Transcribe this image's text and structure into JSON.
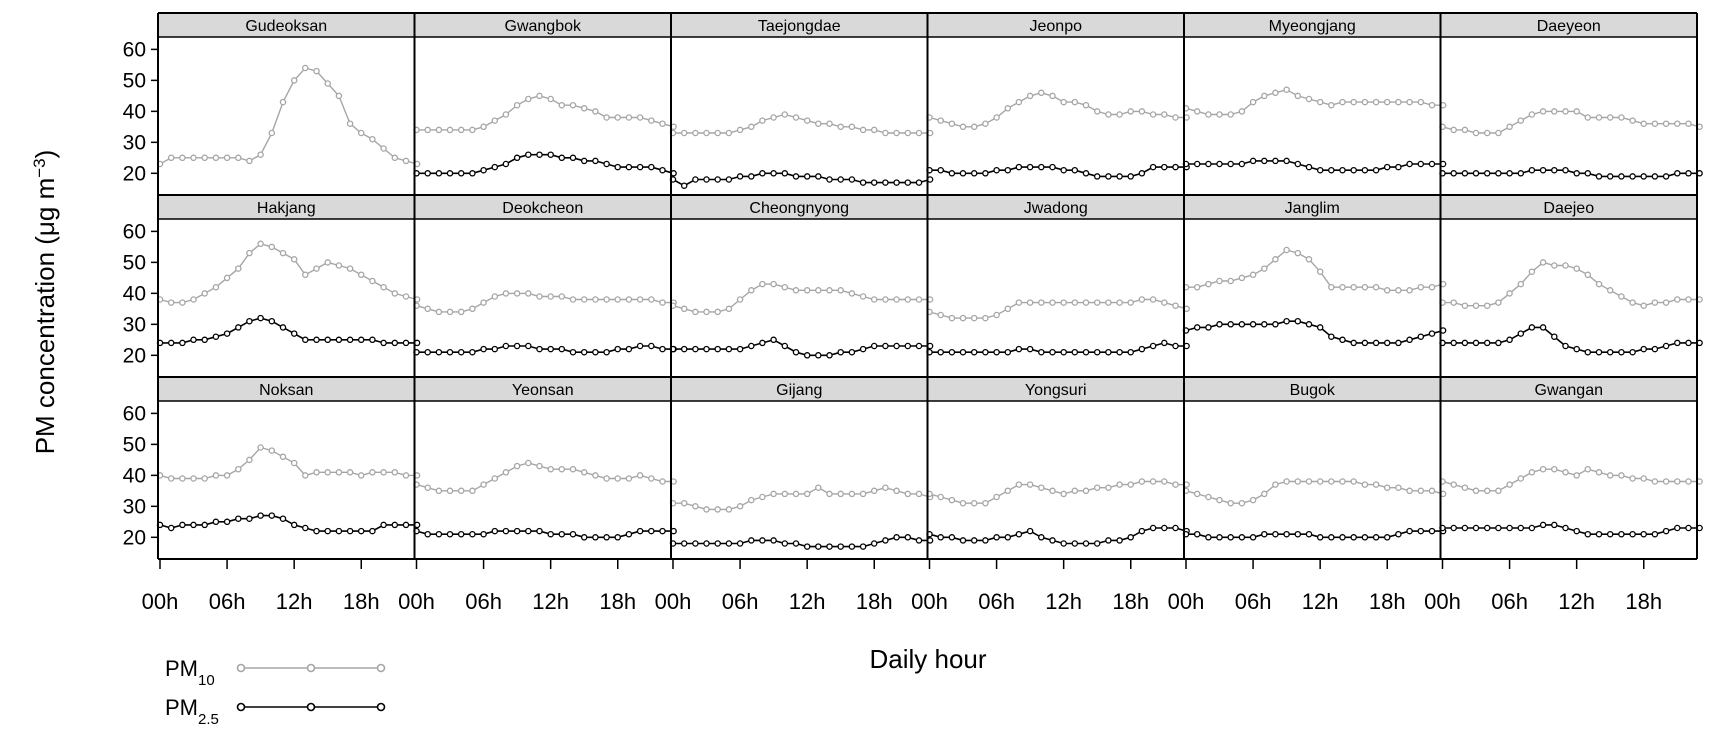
{
  "chart_data": {
    "type": "line",
    "ylabel_main": "PM concentration (μg m",
    "ylabel_sup": "−3",
    "ylabel_close": ")",
    "xlabel": "Daily hour",
    "ylim": [
      13,
      64
    ],
    "yticks": [
      20,
      30,
      40,
      50,
      60
    ],
    "xticks": [
      0,
      6,
      12,
      18
    ],
    "xtick_labels": [
      "00h",
      "06h",
      "12h",
      "18h"
    ],
    "grid": false,
    "legend": {
      "placement": "bottom-left",
      "entries": [
        {
          "main": "PM",
          "sub": "10",
          "color": "#a6a6a6"
        },
        {
          "main": "PM",
          "sub": "2.5",
          "color": "#000000"
        }
      ]
    },
    "series_colors": {
      "pm10": "#a6a6a6",
      "pm25": "#000000"
    },
    "panels": [
      {
        "title": "Gudeoksan",
        "pm10": [
          23,
          25,
          25,
          25,
          25,
          25,
          25,
          25,
          24,
          26,
          33,
          43,
          50,
          54,
          53,
          49,
          45,
          36,
          33,
          31,
          28,
          25,
          24,
          23
        ]
      },
      {
        "title": "Gwangbok",
        "pm10": [
          34,
          34,
          34,
          34,
          34,
          34,
          35,
          37,
          39,
          42,
          44,
          45,
          44,
          42,
          42,
          41,
          40,
          38,
          38,
          38,
          38,
          37,
          36,
          35
        ],
        "pm25": [
          20,
          20,
          20,
          20,
          20,
          20,
          21,
          22,
          23,
          25,
          26,
          26,
          26,
          25,
          25,
          24,
          24,
          23,
          22,
          22,
          22,
          22,
          21,
          20
        ]
      },
      {
        "title": "Taejongdae",
        "pm10": [
          33,
          33,
          33,
          33,
          33,
          33,
          34,
          35,
          37,
          38,
          39,
          38,
          37,
          36,
          36,
          35,
          35,
          34,
          34,
          33,
          33,
          33,
          33,
          33
        ],
        "pm25": [
          18,
          16,
          18,
          18,
          18,
          18,
          19,
          19,
          20,
          20,
          20,
          19,
          19,
          19,
          18,
          18,
          18,
          17,
          17,
          17,
          17,
          17,
          17,
          18
        ]
      },
      {
        "title": "Jeonpo",
        "pm10": [
          38,
          37,
          36,
          35,
          35,
          36,
          38,
          41,
          43,
          45,
          46,
          45,
          43,
          43,
          42,
          40,
          39,
          39,
          40,
          40,
          39,
          39,
          38,
          38
        ],
        "pm25": [
          21,
          21,
          20,
          20,
          20,
          20,
          21,
          21,
          22,
          22,
          22,
          22,
          21,
          21,
          20,
          19,
          19,
          19,
          19,
          20,
          22,
          22,
          22,
          22
        ]
      },
      {
        "title": "Myeongjang",
        "pm10": [
          41,
          40,
          39,
          39,
          39,
          40,
          43,
          45,
          46,
          47,
          45,
          44,
          43,
          42,
          43,
          43,
          43,
          43,
          43,
          43,
          43,
          43,
          42,
          42
        ],
        "pm25": [
          23,
          23,
          23,
          23,
          23,
          23,
          24,
          24,
          24,
          24,
          23,
          22,
          21,
          21,
          21,
          21,
          21,
          21,
          22,
          22,
          23,
          23,
          23,
          23
        ]
      },
      {
        "title": "Daeyeon",
        "pm10": [
          35,
          34,
          34,
          33,
          33,
          33,
          35,
          37,
          39,
          40,
          40,
          40,
          40,
          38,
          38,
          38,
          38,
          37,
          36,
          36,
          36,
          36,
          36,
          35
        ],
        "pm25": [
          20,
          20,
          20,
          20,
          20,
          20,
          20,
          20,
          21,
          21,
          21,
          21,
          20,
          20,
          19,
          19,
          19,
          19,
          19,
          19,
          19,
          20,
          20,
          20
        ]
      },
      {
        "title": "Hakjang",
        "pm10": [
          38,
          37,
          37,
          38,
          40,
          42,
          45,
          48,
          53,
          56,
          55,
          53,
          51,
          46,
          48,
          50,
          49,
          48,
          46,
          44,
          42,
          40,
          39,
          38
        ],
        "pm25": [
          24,
          24,
          24,
          25,
          25,
          26,
          27,
          29,
          31,
          32,
          31,
          29,
          27,
          25,
          25,
          25,
          25,
          25,
          25,
          25,
          24,
          24,
          24,
          24
        ]
      },
      {
        "title": "Deokcheon",
        "pm10": [
          36,
          35,
          34,
          34,
          34,
          35,
          37,
          39,
          40,
          40,
          40,
          39,
          39,
          39,
          38,
          38,
          38,
          38,
          38,
          38,
          38,
          38,
          37,
          37
        ],
        "pm25": [
          21,
          21,
          21,
          21,
          21,
          21,
          22,
          22,
          23,
          23,
          23,
          22,
          22,
          22,
          21,
          21,
          21,
          21,
          22,
          22,
          23,
          23,
          22,
          22
        ]
      },
      {
        "title": "Cheongnyong",
        "pm10": [
          36,
          35,
          34,
          34,
          34,
          35,
          38,
          41,
          43,
          43,
          42,
          41,
          41,
          41,
          41,
          41,
          40,
          39,
          38,
          38,
          38,
          38,
          38,
          38
        ],
        "pm25": [
          22,
          22,
          22,
          22,
          22,
          22,
          22,
          23,
          24,
          25,
          23,
          21,
          20,
          20,
          20,
          21,
          21,
          22,
          23,
          23,
          23,
          23,
          23,
          23
        ]
      },
      {
        "title": "Jwadong",
        "pm10": [
          34,
          33,
          32,
          32,
          32,
          32,
          33,
          35,
          37,
          37,
          37,
          37,
          37,
          37,
          37,
          37,
          37,
          37,
          37,
          38,
          38,
          37,
          36,
          35
        ],
        "pm25": [
          21,
          21,
          21,
          21,
          21,
          21,
          21,
          21,
          22,
          22,
          21,
          21,
          21,
          21,
          21,
          21,
          21,
          21,
          21,
          22,
          23,
          24,
          23,
          23
        ]
      },
      {
        "title": "Janglim",
        "pm10": [
          42,
          42,
          43,
          44,
          44,
          45,
          46,
          48,
          51,
          54,
          53,
          51,
          47,
          42,
          42,
          42,
          42,
          42,
          41,
          41,
          41,
          42,
          42,
          43
        ],
        "pm25": [
          28,
          29,
          29,
          30,
          30,
          30,
          30,
          30,
          30,
          31,
          31,
          30,
          29,
          26,
          25,
          24,
          24,
          24,
          24,
          24,
          25,
          26,
          27,
          28
        ]
      },
      {
        "title": "Daejeo",
        "pm10": [
          37,
          37,
          36,
          36,
          36,
          37,
          40,
          43,
          47,
          50,
          49,
          49,
          48,
          46,
          43,
          41,
          39,
          37,
          36,
          37,
          37,
          38,
          38,
          38
        ],
        "pm25": [
          24,
          24,
          24,
          24,
          24,
          24,
          25,
          27,
          29,
          29,
          26,
          23,
          22,
          21,
          21,
          21,
          21,
          21,
          22,
          22,
          23,
          24,
          24,
          24
        ]
      },
      {
        "title": "Noksan",
        "pm10": [
          40,
          39,
          39,
          39,
          39,
          40,
          40,
          42,
          45,
          49,
          48,
          46,
          44,
          40,
          41,
          41,
          41,
          41,
          40,
          41,
          41,
          41,
          40,
          40
        ],
        "pm25": [
          24,
          23,
          24,
          24,
          24,
          25,
          25,
          26,
          26,
          27,
          27,
          26,
          24,
          23,
          22,
          22,
          22,
          22,
          22,
          22,
          24,
          24,
          24,
          24
        ]
      },
      {
        "title": "Yeonsan",
        "pm10": [
          37,
          36,
          35,
          35,
          35,
          35,
          37,
          39,
          41,
          43,
          44,
          43,
          42,
          42,
          42,
          41,
          40,
          39,
          39,
          39,
          40,
          39,
          38,
          38
        ],
        "pm25": [
          22,
          21,
          21,
          21,
          21,
          21,
          21,
          22,
          22,
          22,
          22,
          22,
          21,
          21,
          21,
          20,
          20,
          20,
          20,
          21,
          22,
          22,
          22,
          22
        ]
      },
      {
        "title": "Gijang",
        "pm10": [
          31,
          31,
          30,
          29,
          29,
          29,
          30,
          32,
          33,
          34,
          34,
          34,
          34,
          36,
          34,
          34,
          34,
          34,
          35,
          36,
          35,
          34,
          34,
          33
        ],
        "pm25": [
          18,
          18,
          18,
          18,
          18,
          18,
          18,
          19,
          19,
          19,
          18,
          18,
          17,
          17,
          17,
          17,
          17,
          17,
          18,
          19,
          20,
          20,
          19,
          19
        ]
      },
      {
        "title": "Yongsuri",
        "pm10": [
          34,
          33,
          32,
          31,
          31,
          31,
          33,
          35,
          37,
          37,
          36,
          35,
          34,
          35,
          35,
          36,
          36,
          37,
          37,
          38,
          38,
          38,
          37,
          37
        ],
        "pm25": [
          21,
          20,
          20,
          19,
          19,
          19,
          20,
          20,
          21,
          22,
          20,
          19,
          18,
          18,
          18,
          18,
          19,
          19,
          20,
          22,
          23,
          23,
          23,
          22
        ]
      },
      {
        "title": "Bugok",
        "pm10": [
          35,
          34,
          33,
          32,
          31,
          31,
          32,
          34,
          37,
          38,
          38,
          38,
          38,
          38,
          38,
          38,
          37,
          37,
          36,
          36,
          35,
          35,
          35,
          34
        ],
        "pm25": [
          21,
          21,
          20,
          20,
          20,
          20,
          20,
          21,
          21,
          21,
          21,
          21,
          20,
          20,
          20,
          20,
          20,
          20,
          20,
          21,
          22,
          22,
          22,
          22
        ]
      },
      {
        "title": "Gwangan",
        "pm10": [
          38,
          37,
          36,
          35,
          35,
          35,
          37,
          39,
          41,
          42,
          42,
          41,
          40,
          42,
          41,
          40,
          40,
          39,
          39,
          38,
          38,
          38,
          38,
          38
        ],
        "pm25": [
          23,
          23,
          23,
          23,
          23,
          23,
          23,
          23,
          23,
          24,
          24,
          23,
          22,
          21,
          21,
          21,
          21,
          21,
          21,
          21,
          22,
          23,
          23,
          23
        ]
      }
    ]
  }
}
